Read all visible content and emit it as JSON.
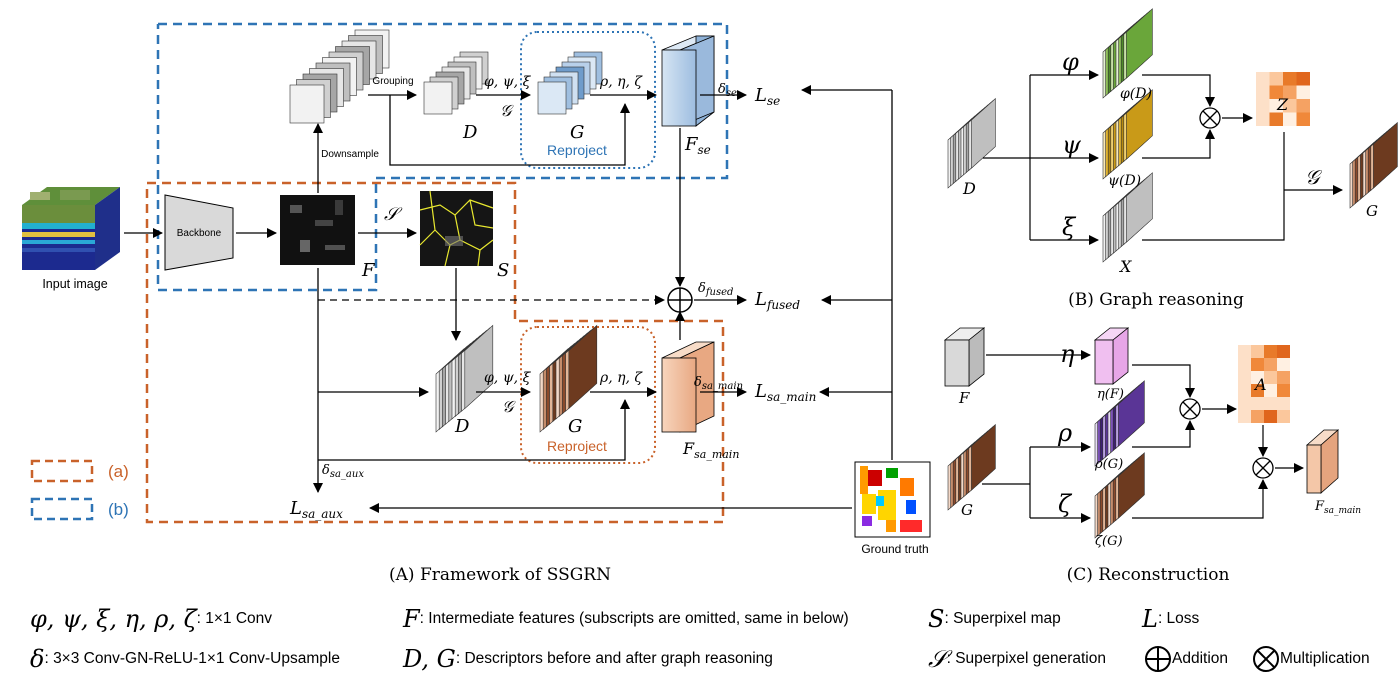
{
  "labels": {
    "input_image": "Input image",
    "backbone": "Backbone",
    "downsample": "Downsample",
    "grouping": "Grouping",
    "reproject_b": "Reproject",
    "reproject_a": "Reproject",
    "ground_truth": "Ground truth",
    "legend_a": "(a)",
    "legend_b": "(b)"
  },
  "math": {
    "F": "F",
    "S": "S",
    "S_gen": "𝒮",
    "D1": "D",
    "G1": "G",
    "D2": "D",
    "G2": "G",
    "phi_psi_xi_1": "φ, ψ, ξ",
    "phi_psi_xi_2": "φ, ψ, ξ",
    "gcal_1": "𝒢",
    "gcal_2": "𝒢",
    "rho_eta_zeta_1": "ρ, η, ζ",
    "rho_eta_zeta_2": "ρ, η, ζ",
    "F_se": "F",
    "F_se_sub": "se",
    "F_sa_main": "F",
    "F_sa_main_sub": "sa_main",
    "delta_se": "δ",
    "delta_se_sub": "se",
    "delta_fused": "δ",
    "delta_fused_sub": "fused",
    "delta_sa_main": "δ",
    "delta_sa_main_sub": "sa_main",
    "delta_sa_aux": "δ",
    "delta_sa_aux_sub": "sa_aux",
    "L_se": "L",
    "L_se_sub": "se",
    "L_fused": "L",
    "L_fused_sub": "fused",
    "L_sa_main": "L",
    "L_sa_main_sub": "sa_main",
    "L_sa_aux": "L",
    "L_sa_aux_sub": "sa_aux"
  },
  "panel_b": {
    "phi": "φ",
    "psi": "ψ",
    "xi": "ξ",
    "D": "D",
    "phiD": "φ(D)",
    "psiD": "ψ(D)",
    "X": "X",
    "Z": "Z",
    "gcal": "𝒢",
    "G": "G"
  },
  "panel_c": {
    "eta": "η",
    "rho": "ρ",
    "zeta": "ζ",
    "F": "F",
    "etaF": "η(F)",
    "G": "G",
    "rhoG": "ρ(G)",
    "zetaG": "ζ(G)",
    "A": "A",
    "F_sa": "F",
    "F_sa_sub": "sa_main"
  },
  "captions": {
    "a": "(A) Framework of SSGRN",
    "b": "(B) Graph reasoning",
    "c": "(C) Reconstruction"
  },
  "legend": {
    "r1_sym": "φ, ψ, ξ, η, ρ, ζ",
    "r1_txt": ": 1×1 Conv",
    "r2_sym": "δ",
    "r2_txt": ": 3×3 Conv-GN-ReLU-1×1 Conv-Upsample",
    "r3_sym": "F",
    "r3_txt": ": Intermediate features (subscripts are omitted, same in below)",
    "r4_sym": "D, G",
    "r4_txt": ": Descriptors before and after graph reasoning",
    "r5_sym": "S",
    "r5_txt": ": Superpixel map",
    "r6_sym": "𝒮",
    "r6_txt": ": Superpixel generation",
    "r7_sym": "L",
    "r7_txt": ": Loss",
    "r8_txt": "Addition",
    "r9_txt": "Multiplication"
  },
  "colors": {
    "orange": "#c9622a",
    "blue": "#2e74b5",
    "brown": "#a0522d",
    "green": "#8fbf5a",
    "yellow": "#e0b431",
    "pink": "#f0b5f0",
    "purple": "#7b52b8",
    "peach": "#f4c7a8",
    "lightblue": "#bcd3ea"
  }
}
